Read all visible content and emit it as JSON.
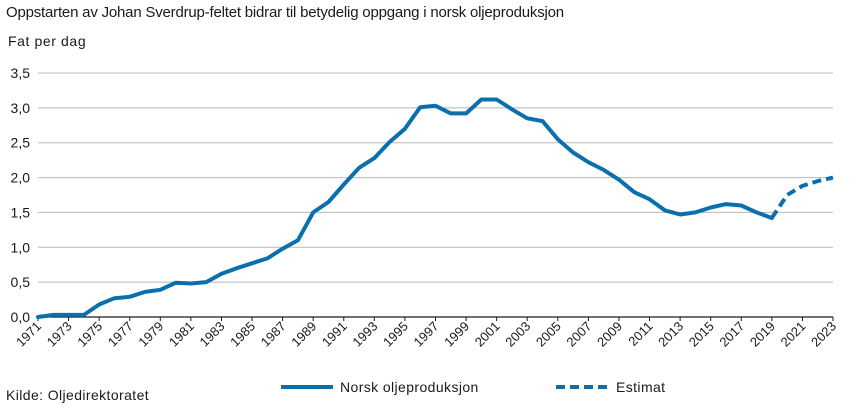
{
  "title": "Oppstarten av Johan Sverdrup-feltet bidrar til betydelig oppgang i norsk oljeproduksjon",
  "source": "Kilde: Oljedirektoratet",
  "chart_data": {
    "type": "line",
    "title": "Oppstarten av Johan Sverdrup-feltet bidrar til betydelig oppgang i norsk oljeproduksjon",
    "ylabel": "Fat per dag",
    "xlabel": "",
    "ylim": [
      0,
      3.5
    ],
    "yticks": [
      "0,0",
      "0,5",
      "1,0",
      "1,5",
      "2,0",
      "2,5",
      "3,0",
      "3,5"
    ],
    "xticks": [
      "1971",
      "1973",
      "1975",
      "1977",
      "1979",
      "1981",
      "1983",
      "1985",
      "1987",
      "1989",
      "1991",
      "1993",
      "1995",
      "1997",
      "1999",
      "2001",
      "2003",
      "2005",
      "2007",
      "2009",
      "2011",
      "2013",
      "2015",
      "2017",
      "2019",
      "2021",
      "2023"
    ],
    "grid": "horizontal",
    "legend_position": "bottom",
    "color": "#0a6fad",
    "series": [
      {
        "name": "Norsk oljeproduksjon",
        "style": "solid",
        "x": [
          1971,
          1972,
          1973,
          1974,
          1975,
          1976,
          1977,
          1978,
          1979,
          1980,
          1981,
          1982,
          1983,
          1984,
          1985,
          1986,
          1987,
          1988,
          1989,
          1990,
          1991,
          1992,
          1993,
          1994,
          1995,
          1996,
          1997,
          1998,
          1999,
          2000,
          2001,
          2002,
          2003,
          2004,
          2005,
          2006,
          2007,
          2008,
          2009,
          2010,
          2011,
          2012,
          2013,
          2014,
          2015,
          2016,
          2017,
          2018,
          2019
        ],
        "values": [
          0.0,
          0.03,
          0.03,
          0.03,
          0.18,
          0.27,
          0.29,
          0.36,
          0.39,
          0.49,
          0.48,
          0.5,
          0.62,
          0.7,
          0.77,
          0.84,
          0.98,
          1.1,
          1.5,
          1.65,
          1.9,
          2.14,
          2.28,
          2.51,
          2.7,
          3.01,
          3.03,
          2.92,
          2.92,
          3.12,
          3.12,
          2.98,
          2.85,
          2.81,
          2.55,
          2.36,
          2.22,
          2.11,
          1.97,
          1.79,
          1.69,
          1.53,
          1.47,
          1.5,
          1.57,
          1.62,
          1.6,
          1.5,
          1.42
        ]
      },
      {
        "name": "Estimat",
        "style": "dashed",
        "x": [
          2019,
          2020,
          2021,
          2022,
          2023
        ],
        "values": [
          1.42,
          1.75,
          1.88,
          1.95,
          2.0
        ]
      }
    ]
  }
}
